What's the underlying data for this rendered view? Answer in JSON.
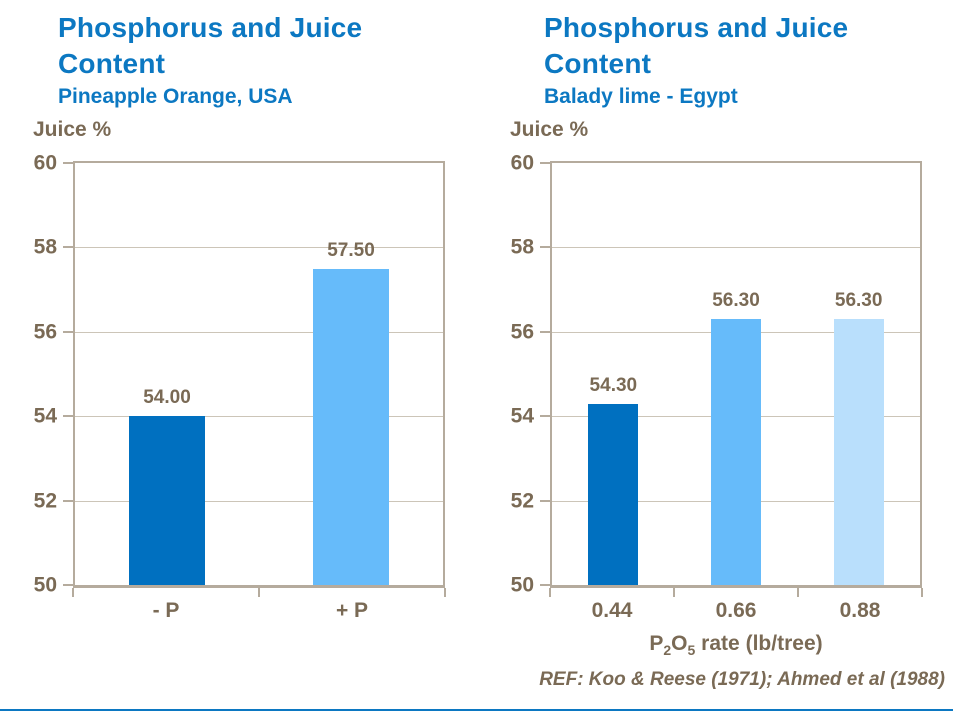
{
  "colors": {
    "title_blue": "#0c78c2",
    "label_text": "#7a6a55",
    "axis_line": "#b5ab9d",
    "grid_line": "#ccc5b8",
    "bar_dark_blue": "#0070c0",
    "bar_medium_blue": "#66bbfa",
    "bar_light_blue": "#b9dffc"
  },
  "ref_note": "REF: Koo & Reese (1971); Ahmed et al (1988)",
  "chart_data": [
    {
      "type": "bar",
      "title": "Phosphorus and Juice Content",
      "subtitle": "Pineapple Orange, USA",
      "ylabel": "Juice %",
      "xlabel": "",
      "xlabel_subscripts": [],
      "categories": [
        "- P",
        "+ P"
      ],
      "values": [
        54.0,
        57.5
      ],
      "value_labels": [
        "54.00",
        "57.50"
      ],
      "bar_colors": [
        "#0070c0",
        "#66bbfa"
      ],
      "ylim": [
        50,
        60
      ],
      "ytick_step": 2,
      "yticks": [
        50,
        52,
        54,
        56,
        58,
        60
      ],
      "grid": true,
      "legend": "none"
    },
    {
      "type": "bar",
      "title": "Phosphorus and Juice Content",
      "subtitle": "Balady lime - Egypt",
      "ylabel": "Juice %",
      "xlabel": "P2O5 rate (lb/tree)",
      "xlabel_subscripts": [
        1,
        3
      ],
      "categories": [
        "0.44",
        "0.66",
        "0.88"
      ],
      "values": [
        54.3,
        56.3,
        56.3
      ],
      "value_labels": [
        "54.30",
        "56.30",
        "56.30"
      ],
      "bar_colors": [
        "#0070c0",
        "#66bbfa",
        "#b9dffc"
      ],
      "ylim": [
        50,
        60
      ],
      "ytick_step": 2,
      "yticks": [
        50,
        52,
        54,
        56,
        58,
        60
      ],
      "grid": true,
      "legend": "none"
    }
  ]
}
